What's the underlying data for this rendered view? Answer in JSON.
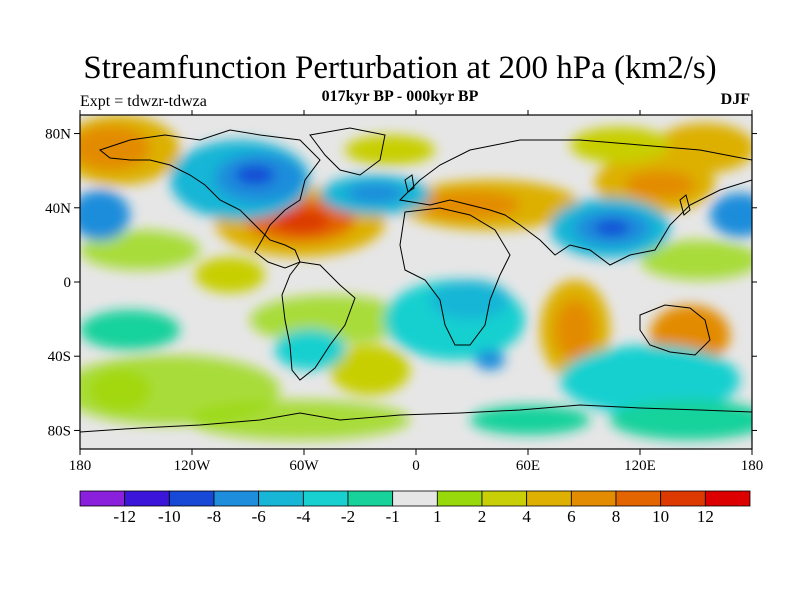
{
  "title": "Streamfunction Perturbation at 200 hPa (km2/s)",
  "subtitle": "017kyr BP - 000kyr BP",
  "left_label": "Expt = tdwzr-tdwza",
  "right_label": "DJF",
  "map": {
    "projection": "cylindrical-equidistant",
    "lon_ticks": [
      "180",
      "120W",
      "60W",
      "0",
      "60E",
      "120E",
      "180"
    ],
    "lat_ticks": [
      "80N",
      "40N",
      "0",
      "40S",
      "80S"
    ],
    "background_color": "#e6e6e6"
  },
  "colorbar": {
    "colors": [
      "#8a1fdc",
      "#3b16da",
      "#1848d6",
      "#1e8ddb",
      "#18b6d6",
      "#19d0d0",
      "#17d29b",
      "#e6e6e6",
      "#98d90b",
      "#c8cf06",
      "#ddb001",
      "#e38b01",
      "#e36500",
      "#dc3a00",
      "#dc0000"
    ],
    "labels": [
      "-12",
      "-10",
      "-8",
      "-6",
      "-4",
      "-2",
      "-1",
      "1",
      "2",
      "4",
      "6",
      "8",
      "10",
      "12"
    ]
  }
}
